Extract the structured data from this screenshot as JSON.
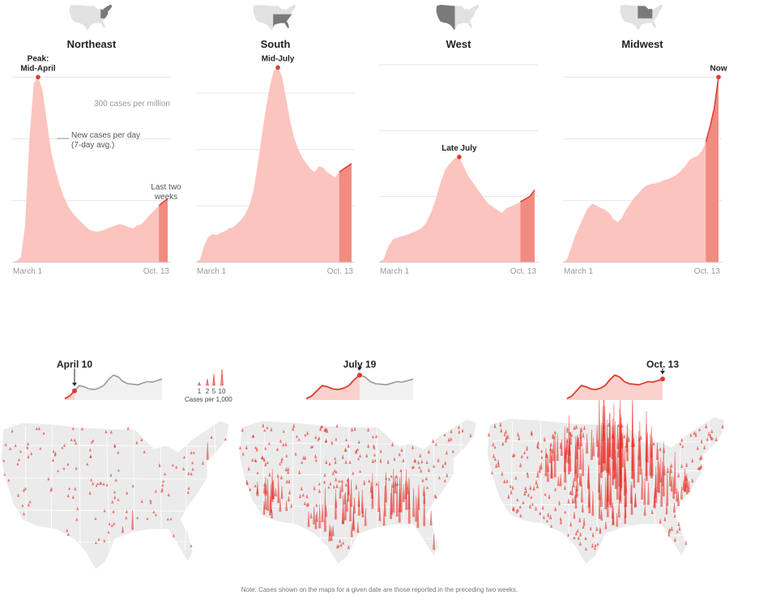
{
  "chart_data": [
    {
      "type": "area",
      "title": "Northeast",
      "x_start": "March 1",
      "x_end": "Oct. 13",
      "peak_label": "Peak:\nMid-April",
      "series": [
        {
          "values": [
            0,
            2,
            8,
            60,
            200,
            290,
            300,
            280,
            230,
            180,
            150,
            125,
            105,
            90,
            80,
            72,
            65,
            58,
            52,
            50,
            50,
            52,
            55,
            57,
            60,
            62,
            60,
            57,
            55,
            60,
            62,
            70,
            78,
            85,
            92,
            98,
            103
          ]
        }
      ],
      "recent_start_index": 34,
      "gridlines": [
        100,
        200,
        300
      ],
      "ylim": [
        0,
        320
      ],
      "annotations": {
        "scale": "300 cases per million",
        "series_desc_line1": "New cases per day",
        "series_desc_line2": "(7-day avg.)",
        "recent_line1": "Last two",
        "recent_line2": "weeks"
      }
    },
    {
      "type": "area",
      "title": "South",
      "x_start": "March 1",
      "x_end": "Oct. 13",
      "peak_label": "Mid-July",
      "series": [
        {
          "values": [
            0,
            5,
            30,
            45,
            50,
            48,
            52,
            55,
            60,
            62,
            68,
            75,
            85,
            100,
            125,
            170,
            220,
            270,
            310,
            340,
            345,
            330,
            290,
            250,
            220,
            200,
            185,
            175,
            165,
            160,
            170,
            168,
            160,
            155,
            150,
            160,
            165,
            170,
            175
          ]
        }
      ],
      "recent_start_index": 35,
      "gridlines": [
        100,
        200,
        300
      ],
      "ylim": [
        0,
        350
      ]
    },
    {
      "type": "area",
      "title": "West",
      "x_start": "March 1",
      "x_end": "Oct. 13",
      "peak_label": "Late July",
      "series": [
        {
          "values": [
            0,
            5,
            25,
            35,
            38,
            40,
            42,
            45,
            48,
            52,
            60,
            75,
            95,
            120,
            140,
            150,
            158,
            160,
            145,
            130,
            120,
            110,
            100,
            90,
            85,
            80,
            75,
            82,
            85,
            88,
            92,
            96,
            100,
            110
          ]
        }
      ],
      "recent_start_index": 30,
      "gridlines": [
        100,
        200,
        300
      ],
      "ylim": [
        0,
        300
      ]
    },
    {
      "type": "area",
      "title": "Midwest",
      "x_start": "March 1",
      "x_end": "Oct. 13",
      "peak_label": "Now",
      "series": [
        {
          "values": [
            0,
            5,
            25,
            45,
            60,
            75,
            88,
            95,
            92,
            88,
            85,
            80,
            70,
            65,
            72,
            85,
            95,
            105,
            112,
            120,
            125,
            127,
            128,
            130,
            133,
            135,
            138,
            142,
            148,
            155,
            165,
            170,
            172,
            180,
            195,
            220,
            250,
            300
          ]
        }
      ],
      "recent_start_index": 34,
      "gridlines": [
        100,
        200,
        300
      ],
      "ylim": [
        0,
        320
      ]
    }
  ],
  "maps": [
    {
      "date": "April 10",
      "spike_density": 0.35,
      "hotspot_regions": [
        "northeast",
        "new-orleans",
        "michigan",
        "colorado"
      ]
    },
    {
      "date": "July 19",
      "spike_density": 0.75,
      "hotspot_regions": [
        "south",
        "arizona",
        "texas",
        "florida"
      ]
    },
    {
      "date": "Oct. 13",
      "spike_density": 0.95,
      "hotspot_regions": [
        "midwest",
        "great-plains",
        "wisconsin"
      ]
    }
  ],
  "legend": {
    "ticks": [
      "1",
      "2",
      "5",
      "10"
    ],
    "label": "Cases per 1,000"
  },
  "note": "Note: Cases shown on the maps for a given date are those reported in the preceding two weeks.",
  "colors": {
    "area_fill": "#fbc4bf",
    "recent_fill": "#f28b82",
    "line": "#e03b2f",
    "spike": "#e8322a",
    "map_land": "#ebebeb",
    "map_border": "#ffffff",
    "grid": "#e6e6e6",
    "inactive_line": "#9a9a9a"
  }
}
